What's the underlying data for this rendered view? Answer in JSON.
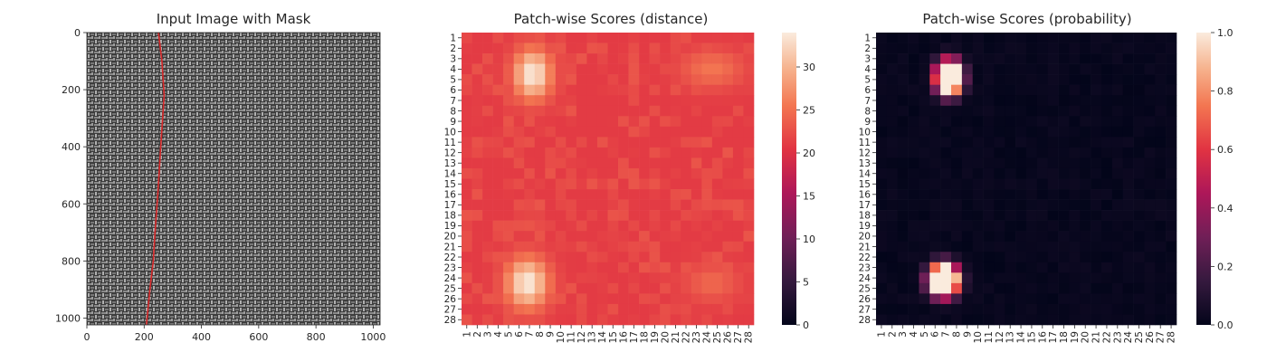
{
  "chart_data": [
    {
      "type": "image",
      "title": "Input Image with Mask",
      "xticks": [
        "0",
        "200",
        "400",
        "600",
        "800",
        "1000"
      ],
      "yticks": [
        "0",
        "200",
        "400",
        "600",
        "800",
        "1000"
      ],
      "xlim": [
        0,
        1024
      ],
      "ylim": [
        1024,
        0
      ],
      "mask_line": {
        "color": "#d62728",
        "points": [
          [
            250,
            0
          ],
          [
            262,
            100
          ],
          [
            270,
            220
          ],
          [
            258,
            400
          ],
          [
            248,
            560
          ],
          [
            238,
            700
          ],
          [
            232,
            800
          ],
          [
            220,
            900
          ],
          [
            208,
            1024
          ]
        ]
      },
      "background": "woven fabric texture (grayscale)"
    },
    {
      "type": "heatmap",
      "title": "Patch-wise Scores (distance)",
      "rows": 28,
      "cols": 28,
      "xticklabels": [
        "1",
        "2",
        "3",
        "4",
        "5",
        "6",
        "7",
        "8",
        "9",
        "10",
        "11",
        "12",
        "13",
        "14",
        "15",
        "16",
        "17",
        "18",
        "19",
        "20",
        "21",
        "22",
        "23",
        "24",
        "25",
        "26",
        "27",
        "28"
      ],
      "yticklabels": [
        "1",
        "2",
        "3",
        "4",
        "5",
        "6",
        "7",
        "8",
        "9",
        "10",
        "11",
        "12",
        "13",
        "14",
        "15",
        "16",
        "17",
        "18",
        "19",
        "20",
        "21",
        "22",
        "23",
        "24",
        "25",
        "26",
        "27",
        "28"
      ],
      "colorbar": {
        "min": 0,
        "max": 34,
        "ticks": [
          "0",
          "5",
          "10",
          "15",
          "20",
          "25",
          "30"
        ]
      },
      "base_value": 21,
      "hotspots": [
        {
          "row": 4.5,
          "col": 7.3,
          "peak": 34,
          "spread_r": 2.4,
          "spread_c": 1.8
        },
        {
          "row": 24.5,
          "col": 6.8,
          "peak": 34,
          "spread_r": 2.4,
          "spread_c": 2.0
        },
        {
          "row": 4,
          "col": 24.5,
          "peak": 25.5,
          "spread_r": 1.8,
          "spread_c": 3.0
        },
        {
          "row": 24.5,
          "col": 24.5,
          "peak": 24.5,
          "spread_r": 1.8,
          "spread_c": 2.6
        }
      ]
    },
    {
      "type": "heatmap",
      "title": "Patch-wise Scores (probability)",
      "rows": 28,
      "cols": 28,
      "xticklabels": [
        "1",
        "2",
        "3",
        "4",
        "5",
        "6",
        "7",
        "8",
        "9",
        "10",
        "11",
        "12",
        "13",
        "14",
        "15",
        "16",
        "17",
        "18",
        "19",
        "20",
        "21",
        "22",
        "23",
        "24",
        "25",
        "26",
        "27",
        "28"
      ],
      "yticklabels": [
        "1",
        "2",
        "3",
        "4",
        "5",
        "6",
        "7",
        "8",
        "9",
        "10",
        "11",
        "12",
        "13",
        "14",
        "15",
        "16",
        "17",
        "18",
        "19",
        "20",
        "21",
        "22",
        "23",
        "24",
        "25",
        "26",
        "27",
        "28"
      ],
      "colorbar": {
        "min": 0,
        "max": 1,
        "ticks": [
          "0.0",
          "0.2",
          "0.4",
          "0.6",
          "0.8",
          "1.0"
        ]
      },
      "hotspots": [
        {
          "row": 4.8,
          "col": 7.3,
          "peak": 1.0,
          "spread_r": 2.1,
          "spread_c": 1.6
        },
        {
          "row": 24.2,
          "col": 6.8,
          "peak": 1.0,
          "spread_r": 2.0,
          "spread_c": 1.8
        }
      ]
    }
  ]
}
